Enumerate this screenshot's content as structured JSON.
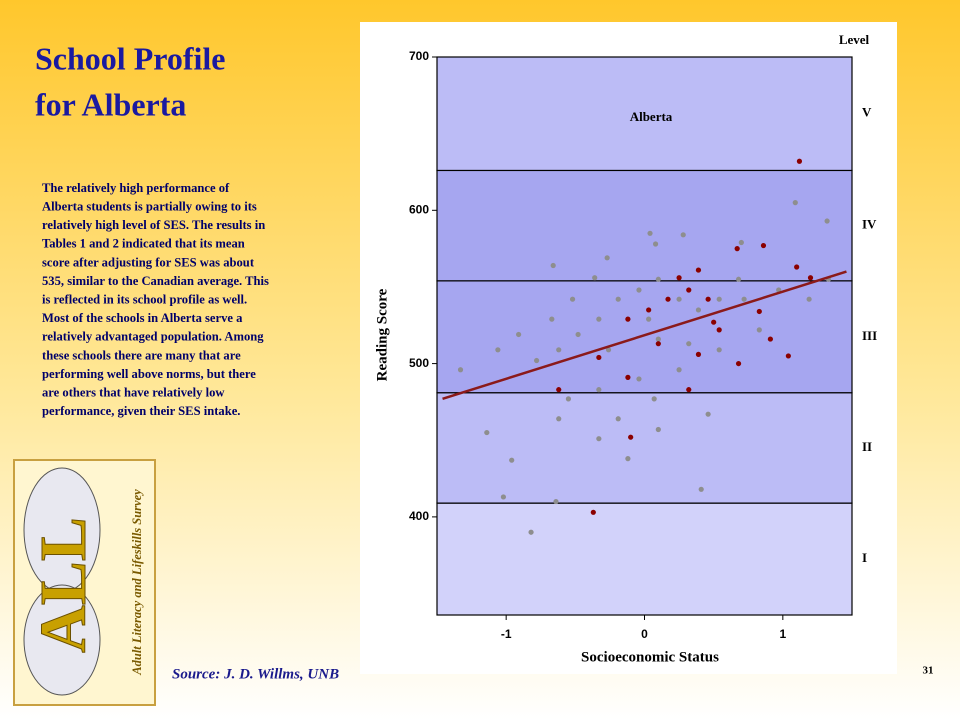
{
  "slide": {
    "title": [
      "School Profile",
      "for Alberta"
    ],
    "body": [
      "The relatively high performance of",
      "Alberta students is partially owing to its",
      "relatively high level of SES. The results in",
      "Tables 1 and 2 indicated that its mean",
      "score after adjusting for SES was about",
      "535, similar to the Canadian average. This",
      "is reflected in its school profile as well.",
      "Most of the schools in Alberta serve a",
      "relatively advantaged population. Among",
      "these schools there are many that are",
      "performing well above norms, but there",
      "are others that have relatively low",
      "performance, given their SES intake."
    ],
    "source": "Source:  J. D. Willms, UNB",
    "page_number": "31",
    "logo_letters": "ALL",
    "logo_text": "Adult Literacy and Lifeskills Survey"
  },
  "chart_data": {
    "type": "scatter",
    "title": "Alberta",
    "xlabel": "Socioeconomic Status",
    "ylabel": "Reading Score",
    "xlim": [
      -1.5,
      1.5
    ],
    "ylim": [
      336,
      700
    ],
    "xticks": [
      -1,
      0,
      1
    ],
    "yticks": [
      400,
      500,
      600,
      700
    ],
    "level_title": "Level",
    "levels": [
      {
        "label": "I",
        "from": 336,
        "to": 409,
        "color": "#d2d2fa"
      },
      {
        "label": "II",
        "from": 409,
        "to": 481,
        "color": "#bcbcf6"
      },
      {
        "label": "III",
        "from": 481,
        "to": 554,
        "color": "#a6a6f0"
      },
      {
        "label": "IV",
        "from": 554,
        "to": 626,
        "color": "#a6a6f0"
      },
      {
        "label": "V",
        "from": 626,
        "to": 700,
        "color": "#bcbcf6"
      }
    ],
    "series": [
      {
        "color": "#8e8e8e",
        "x": [
          -0.96,
          -1.02,
          -0.82,
          -0.64,
          -1.33,
          -1.14,
          -0.66,
          0.04,
          0.08,
          0.7,
          1.09,
          1.32,
          0.28,
          -0.27,
          -0.36,
          -0.52,
          -0.67,
          -0.91,
          -0.78,
          -0.48,
          -0.33,
          -0.19,
          -0.04,
          0.1,
          0.39,
          0.68,
          0.97,
          1.19,
          1.33,
          0.83,
          0.54,
          0.25,
          -0.04,
          -0.33,
          -0.55,
          -0.19,
          -0.33,
          -0.12,
          0.1,
          0.46,
          0.41,
          0.07,
          -0.62,
          0.39,
          0.03,
          -0.26,
          0.32,
          0.54,
          0.25,
          -0.62,
          -1.06,
          0.1,
          0.72
        ],
        "values": [
          437,
          413,
          390,
          410,
          496,
          455,
          564,
          585,
          578,
          579,
          605,
          593,
          584,
          569,
          556,
          542,
          529,
          519,
          502,
          519,
          529,
          542,
          548,
          555,
          561,
          555,
          548,
          542,
          555,
          522,
          509,
          496,
          490,
          483,
          477,
          464,
          451,
          438,
          457,
          467,
          418,
          477,
          464,
          535,
          529,
          509,
          513,
          542,
          542,
          509,
          509,
          516,
          542
        ]
      },
      {
        "color": "#8b0000",
        "x": [
          1.12,
          -0.37,
          0.67,
          0.86,
          0.39,
          0.46,
          0.32,
          0.17,
          0.03,
          -0.12,
          0.54,
          0.83,
          1.04,
          0.91,
          -0.12,
          -0.1,
          -0.33,
          -0.62,
          0.32,
          0.68,
          1.1,
          1.2,
          0.5,
          0.25,
          0.39,
          0.1
        ],
        "values": [
          632,
          403,
          575,
          577,
          561,
          542,
          548,
          542,
          535,
          529,
          522,
          534,
          505,
          516,
          491,
          452,
          504,
          483,
          483,
          500,
          563,
          556,
          527,
          556,
          506,
          513
        ]
      }
    ],
    "trend": {
      "color": "#8b1a1a",
      "x": [
        -1.46,
        1.46
      ],
      "y": [
        477,
        560
      ]
    }
  }
}
